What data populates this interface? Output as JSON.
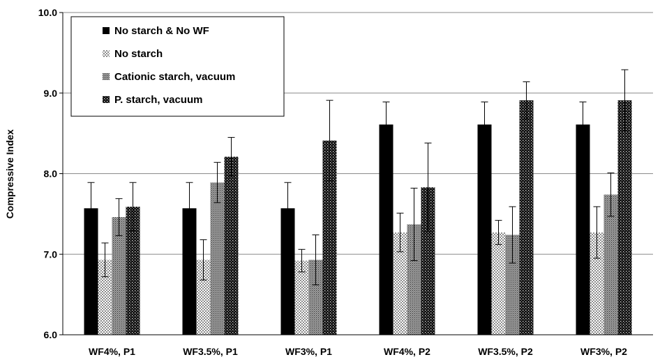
{
  "chart_data": {
    "type": "bar",
    "title": "",
    "xlabel": "",
    "ylabel": "Compressive Index",
    "ylim": [
      6.0,
      10.0
    ],
    "yticks": [
      "6.0",
      "7.0",
      "8.0",
      "9.0",
      "10.0"
    ],
    "grid": true,
    "legend_position": "top-left",
    "categories": [
      "WF4%, P1",
      "WF3.5%, P1",
      "WF3%, P1",
      "WF4%, P2",
      "WF3.5%, P2",
      "WF3%, P2"
    ],
    "series": [
      {
        "name": "No starch & No WF",
        "pattern": "solid",
        "color": "#000000",
        "values": [
          7.57,
          7.57,
          7.57,
          8.61,
          8.61,
          8.61
        ],
        "errors": [
          0.32,
          0.32,
          0.32,
          0.28,
          0.28,
          0.28
        ]
      },
      {
        "name": "No starch",
        "pattern": "light-check",
        "color": "#9a9a9a",
        "values": [
          6.93,
          6.93,
          6.92,
          7.27,
          7.27,
          7.27
        ],
        "errors": [
          0.21,
          0.25,
          0.14,
          0.24,
          0.15,
          0.32
        ]
      },
      {
        "name": "Cationic starch, vacuum",
        "pattern": "medium-dots",
        "color": "#6e6e6e",
        "values": [
          7.46,
          7.89,
          6.93,
          7.37,
          7.24,
          7.74
        ],
        "errors": [
          0.23,
          0.25,
          0.31,
          0.45,
          0.35,
          0.27
        ]
      },
      {
        "name": "P. starch, vacuum",
        "pattern": "dark-check",
        "color": "#1e1e1e",
        "values": [
          7.59,
          8.21,
          8.41,
          7.83,
          8.91,
          8.91
        ],
        "errors": [
          0.3,
          0.24,
          0.5,
          0.55,
          0.23,
          0.38
        ]
      }
    ]
  }
}
